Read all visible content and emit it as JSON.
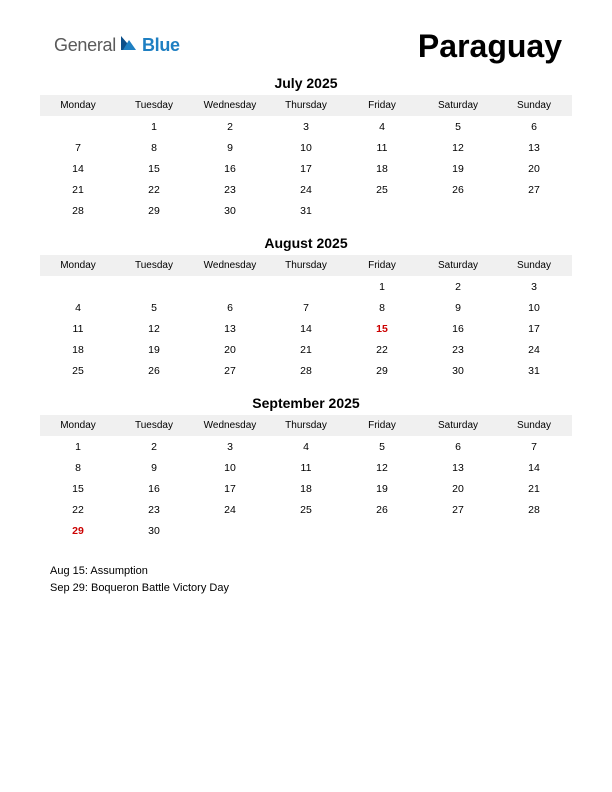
{
  "logo": {
    "text1": "General",
    "text2": "Blue"
  },
  "country": "Paraguay",
  "day_headers": [
    "Monday",
    "Tuesday",
    "Wednesday",
    "Thursday",
    "Friday",
    "Saturday",
    "Sunday"
  ],
  "colors": {
    "header_bg": "#f0f0f0",
    "text": "#000000",
    "holiday": "#cc0000",
    "logo_gray": "#5a5a5a",
    "logo_blue": "#1e7fc2",
    "background": "#ffffff"
  },
  "typography": {
    "country_fontsize": 32,
    "month_fontsize": 14,
    "header_fontsize": 10,
    "cell_fontsize": 10.5,
    "holiday_list_fontsize": 11
  },
  "months": [
    {
      "title": "July 2025",
      "weeks": [
        [
          "",
          "1",
          "2",
          "3",
          "4",
          "5",
          "6"
        ],
        [
          "7",
          "8",
          "9",
          "10",
          "11",
          "12",
          "13"
        ],
        [
          "14",
          "15",
          "16",
          "17",
          "18",
          "19",
          "20"
        ],
        [
          "21",
          "22",
          "23",
          "24",
          "25",
          "26",
          "27"
        ],
        [
          "28",
          "29",
          "30",
          "31",
          "",
          "",
          ""
        ]
      ],
      "holidays": []
    },
    {
      "title": "August 2025",
      "weeks": [
        [
          "",
          "",
          "",
          "",
          "1",
          "2",
          "3"
        ],
        [
          "4",
          "5",
          "6",
          "7",
          "8",
          "9",
          "10"
        ],
        [
          "11",
          "12",
          "13",
          "14",
          "15",
          "16",
          "17"
        ],
        [
          "18",
          "19",
          "20",
          "21",
          "22",
          "23",
          "24"
        ],
        [
          "25",
          "26",
          "27",
          "28",
          "29",
          "30",
          "31"
        ]
      ],
      "holidays": [
        "15"
      ]
    },
    {
      "title": "September 2025",
      "weeks": [
        [
          "1",
          "2",
          "3",
          "4",
          "5",
          "6",
          "7"
        ],
        [
          "8",
          "9",
          "10",
          "11",
          "12",
          "13",
          "14"
        ],
        [
          "15",
          "16",
          "17",
          "18",
          "19",
          "20",
          "21"
        ],
        [
          "22",
          "23",
          "24",
          "25",
          "26",
          "27",
          "28"
        ],
        [
          "29",
          "30",
          "",
          "",
          "",
          "",
          ""
        ]
      ],
      "holidays": [
        "29"
      ]
    }
  ],
  "holiday_list": [
    "Aug 15: Assumption",
    "Sep 29: Boqueron Battle Victory Day"
  ]
}
